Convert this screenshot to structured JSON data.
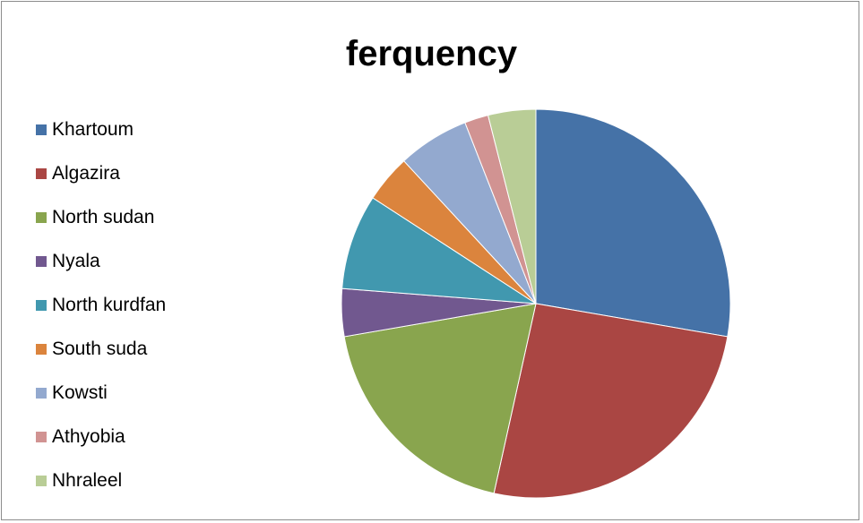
{
  "chart_data": {
    "type": "pie",
    "title": "ferquency",
    "legend_position": "left",
    "categories": [
      "Khartoum",
      "Algazira",
      "North sudan",
      "Nyala",
      "North kurdfan",
      "South suda",
      "Kowsti",
      "Athyobia",
      "Nhraleel"
    ],
    "values": [
      28,
      26,
      19,
      4,
      8,
      4,
      6,
      2,
      4
    ],
    "colors": [
      "#4572a7",
      "#aa4643",
      "#89a54e",
      "#71588f",
      "#4198af",
      "#db843d",
      "#93a9cf",
      "#d19392",
      "#b9cd96"
    ]
  }
}
